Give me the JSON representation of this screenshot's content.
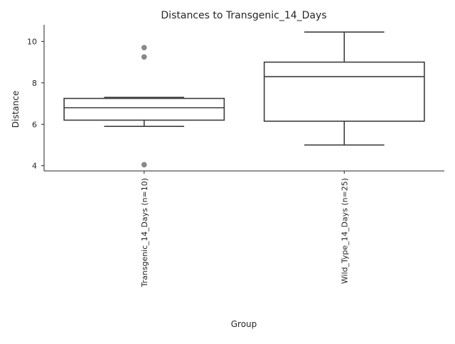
{
  "chart_data": {
    "type": "box",
    "title": "Distances to Transgenic_14_Days",
    "xlabel": "Group",
    "ylabel": "Distance",
    "ylim": [
      3.75,
      10.8
    ],
    "yticks": [
      4,
      6,
      8,
      10
    ],
    "grid": false,
    "categories": [
      "Transgenic_14_Days (n=10)",
      "Wild_Type_14_Days (n=25)"
    ],
    "boxes": [
      {
        "category": "Transgenic_14_Days (n=10)",
        "whisker_low": 5.9,
        "q1": 6.2,
        "median": 6.8,
        "q3": 7.25,
        "whisker_high": 7.3,
        "outliers": [
          4.05,
          9.25,
          9.7
        ]
      },
      {
        "category": "Wild_Type_14_Days (n=25)",
        "whisker_low": 5.0,
        "q1": 6.15,
        "median": 8.3,
        "q3": 9.0,
        "whisker_high": 10.45,
        "outliers": []
      }
    ]
  },
  "colors": {
    "box_edge": "#3d3d3d",
    "box_fill": "#ffffff",
    "flier": "#8c8c8c",
    "text": "#262626"
  }
}
